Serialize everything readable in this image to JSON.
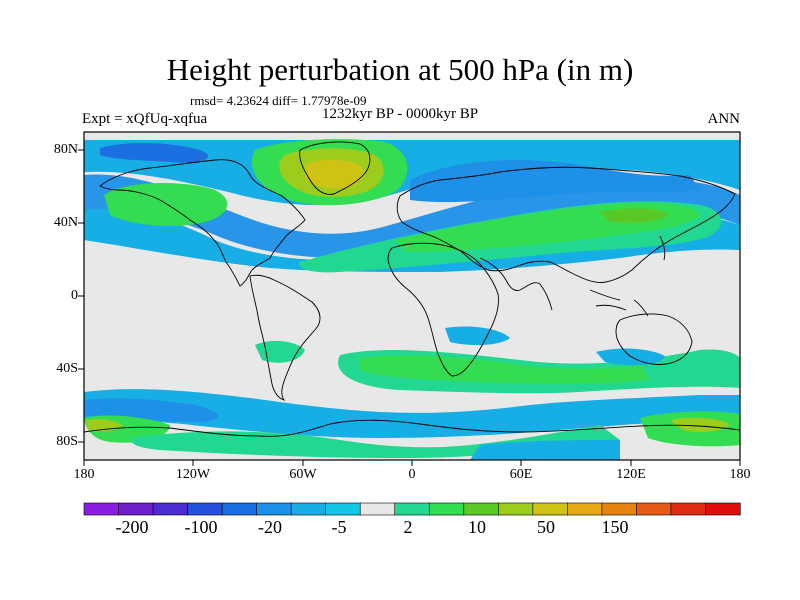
{
  "title": "Height perturbation at 500 hPa (in m)",
  "stats": "rmsd= 4.23624 diff= 1.77978e-09",
  "left_label": "Expt = xQfUq-xqfua",
  "center_label": "1232kyr BP - 0000kyr BP",
  "right_label": "ANN",
  "lat_labels": [
    "80N",
    "40N",
    "0",
    "40S",
    "80S"
  ],
  "lon_labels": [
    "180",
    "120W",
    "60W",
    "0",
    "60E",
    "120E",
    "180"
  ],
  "colorbar": {
    "colors": [
      "#8a1de0",
      "#6b20c8",
      "#4c2bd0",
      "#2450dc",
      "#1c6fe0",
      "#1e90e8",
      "#16aee4",
      "#12c6e6",
      "#e8e8e8",
      "#22d890",
      "#34dc52",
      "#5ac826",
      "#9ccc1c",
      "#cec214",
      "#e6ab12",
      "#e48212",
      "#e45a16",
      "#e02c14",
      "#e00c0c"
    ],
    "labels": [
      "-200",
      "-100",
      "-20",
      "-5",
      "2",
      "10",
      "50",
      "150"
    ]
  },
  "colors": {
    "land_line": "#000000",
    "neutral": "#e8e8e8"
  }
}
